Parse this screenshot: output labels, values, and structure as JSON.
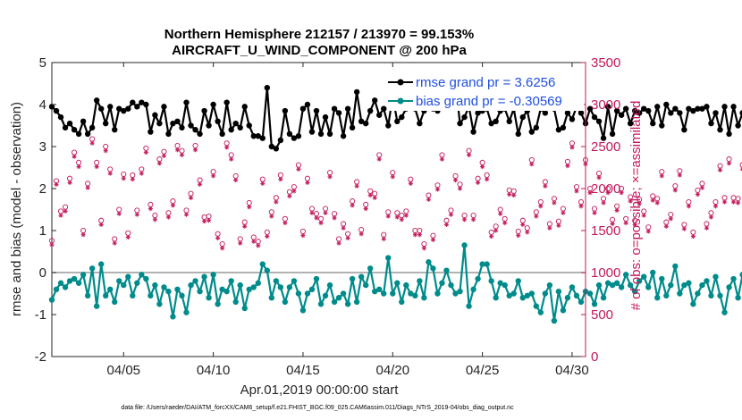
{
  "chart_data": {
    "type": "line",
    "title_line1": "Northern Hemisphere 212157 / 213970 = 99.153%",
    "title_line2": "AIRCRAFT_U_WIND_COMPONENT @ 200 hPa",
    "ylabel_left": "rmse and bias (model - observation)",
    "ylabel_right": "# of obs: o=possible; ×=assimilated",
    "xlabel": "Apr.01,2019 00:00:00 start",
    "footer": "data file: /Users/raeder/DAI/ATM_forcXX/CAM6_setup/f.e21.FHIST_BGC.f09_025.CAM6assim.011/Diags_NTrS_2019-04/obs_diag_output.nc",
    "xlim": [
      1.0,
      30.75
    ],
    "ylim_left": [
      -2,
      5
    ],
    "ylim_right": [
      0,
      3500
    ],
    "left_ticks": [
      "-2",
      "-1",
      "0",
      "1",
      "2",
      "3",
      "4",
      "5"
    ],
    "right_ticks": [
      "0",
      "500",
      "1000",
      "1500",
      "2000",
      "2500",
      "3000",
      "3500"
    ],
    "x_ticks": [
      {
        "label": "04/05",
        "day": 5
      },
      {
        "label": "04/10",
        "day": 10
      },
      {
        "label": "04/15",
        "day": 15
      },
      {
        "label": "04/20",
        "day": 20
      },
      {
        "label": "04/25",
        "day": 25
      },
      {
        "label": "04/30",
        "day": 30
      }
    ],
    "x_step_days": 0.25,
    "colors": {
      "rmse": "#000000",
      "bias": "#008b8b",
      "obs": "#c2185b",
      "legend_text": "#1f4fe0",
      "zero_line": "#999999"
    },
    "series": [
      {
        "name": "rmse grand pr = 3.6256",
        "axis": "left",
        "values": [
          3.95,
          3.85,
          3.7,
          3.45,
          3.55,
          3.4,
          3.3,
          3.6,
          3.3,
          3.45,
          4.1,
          3.9,
          3.55,
          3.95,
          3.4,
          3.9,
          3.85,
          3.9,
          4.05,
          3.95,
          4.05,
          4.0,
          3.35,
          3.75,
          3.55,
          3.95,
          3.3,
          3.55,
          3.6,
          3.45,
          4.05,
          3.5,
          3.4,
          3.3,
          3.85,
          3.5,
          4.0,
          3.6,
          3.3,
          4.05,
          3.4,
          3.55,
          3.45,
          3.95,
          3.5,
          3.25,
          3.25,
          3.2,
          4.4,
          3.0,
          2.95,
          3.15,
          3.85,
          3.3,
          3.2,
          3.25,
          3.9,
          4.0,
          3.35,
          3.85,
          3.3,
          3.7,
          3.3,
          3.9,
          3.8,
          3.25,
          3.9,
          3.45,
          4.3,
          3.6,
          3.55,
          3.85,
          4.1,
          3.75,
          3.9,
          3.5,
          4.2,
          3.6,
          3.7,
          3.9,
          3.95,
          3.9,
          3.55,
          3.85,
          4.15,
          3.9,
          3.85,
          4.05,
          4.1,
          4.2,
          4.55,
          3.55,
          3.7,
          3.95,
          3.35,
          3.8,
          3.85,
          3.9,
          3.55,
          3.6,
          3.85,
          3.9,
          3.6,
          3.9,
          3.3,
          3.7,
          3.85,
          3.35,
          3.45,
          3.9,
          3.8,
          4.05,
          3.9,
          3.4,
          3.45,
          3.8,
          3.65,
          3.95,
          3.8,
          3.55,
          3.9,
          3.7,
          3.6,
          3.2,
          3.95,
          3.3,
          3.85,
          3.75,
          3.9,
          3.55,
          3.85,
          3.8,
          3.9,
          3.85,
          3.55,
          3.95,
          3.5,
          4.0,
          3.8,
          3.9,
          3.8,
          3.4,
          3.9,
          3.85,
          3.9,
          3.9,
          3.95,
          3.55,
          3.8,
          3.4,
          3.95,
          3.3,
          3.95,
          3.5,
          3.8,
          3.75,
          3.55,
          3.95,
          3.55,
          3.9,
          3.75,
          3.55,
          3.5,
          3.9,
          3.3,
          3.8,
          3.7,
          3.3,
          3.6,
          3.5,
          3.3,
          3.2,
          3.35,
          3.0,
          3.25,
          3.65,
          3.15,
          3.4,
          3.9,
          3.2,
          3.6,
          3.8,
          3.25,
          3.1,
          3.05
        ]
      },
      {
        "name": "bias grand pr = -0.30569",
        "axis": "left",
        "values": [
          -0.65,
          -0.4,
          -0.25,
          -0.35,
          -0.2,
          -0.15,
          -0.25,
          -0.05,
          -0.55,
          0.1,
          -0.8,
          0.2,
          -0.55,
          -0.4,
          -0.7,
          -0.2,
          -0.3,
          -0.1,
          -0.55,
          -0.25,
          -0.05,
          -0.15,
          -0.55,
          -0.3,
          -0.75,
          -0.35,
          -0.45,
          -1.05,
          -0.4,
          -0.55,
          -0.95,
          -0.3,
          -0.2,
          -0.45,
          -0.1,
          -0.6,
          -0.05,
          -0.75,
          -0.4,
          -0.45,
          -0.2,
          -0.7,
          -0.3,
          -0.85,
          -0.4,
          -0.35,
          -0.25,
          0.2,
          0.05,
          -0.6,
          -0.2,
          -0.35,
          -0.7,
          -0.35,
          -0.2,
          -0.5,
          -0.9,
          -0.5,
          -0.4,
          -0.15,
          -0.75,
          -0.55,
          -0.3,
          -0.7,
          -0.6,
          -0.5,
          -0.75,
          -0.15,
          -0.7,
          -0.1,
          -0.3,
          0.1,
          -0.45,
          -0.4,
          -0.5,
          0.35,
          -0.5,
          -0.25,
          -0.7,
          -0.3,
          -0.5,
          -0.55,
          -0.2,
          -0.6,
          0.25,
          0.1,
          -0.5,
          -0.25,
          0.05,
          -0.3,
          -0.5,
          -0.45,
          0.65,
          -0.8,
          -0.4,
          -0.15,
          0.2,
          0.2,
          -0.2,
          -0.6,
          -0.25,
          -0.3,
          -0.55,
          -0.5,
          -0.2,
          -0.6,
          -0.55,
          -0.5,
          -0.8,
          -0.95,
          -0.5,
          -0.3,
          -1.15,
          -0.45,
          -0.9,
          -0.6,
          -0.35,
          -0.55,
          -0.7,
          -0.45,
          -0.5,
          -0.75,
          -0.3,
          -0.6,
          -0.25,
          -0.3,
          -0.25,
          -0.35,
          -0.05,
          -0.3,
          -0.45,
          -0.2,
          -0.1,
          -0.35,
          0.0,
          -0.6,
          -0.15,
          -0.55,
          -0.3,
          0.15,
          -0.5,
          -0.3,
          -0.25,
          -0.75,
          -0.5,
          -0.3,
          -0.2,
          -0.55,
          -0.1,
          -0.55,
          -0.95,
          -0.35,
          -0.15,
          -0.6,
          -0.05,
          -0.6,
          -0.75,
          -0.35,
          -0.15,
          -0.15,
          -0.45,
          -0.25,
          -0.15,
          -0.7,
          -0.6,
          -0.35,
          -0.25,
          -0.25,
          -0.7,
          -0.65,
          -0.25,
          -0.55,
          -0.45,
          -0.85,
          0.15,
          -0.55,
          -0.1,
          -0.3,
          -0.45,
          -0.3,
          -0.55,
          -0.6,
          -0.4,
          -0.2
        ]
      },
      {
        "name": "possible",
        "axis": "right",
        "marker": "o",
        "values": [
          1380,
          2090,
          1730,
          1780,
          2120,
          2430,
          2310,
          1500,
          2060,
          2590,
          2310,
          1620,
          2500,
          2230,
          1400,
          1750,
          2170,
          1470,
          2160,
          1740,
          2230,
          2480,
          1810,
          1680,
          2350,
          2440,
          1710,
          1850,
          2510,
          2450,
          1740,
          1940,
          2510,
          2100,
          1660,
          1670,
          2200,
          1460,
          1340,
          2540,
          2400,
          2150,
          1400,
          1600,
          1830,
          1420,
          1370,
          2110,
          1480,
          1720,
          1890,
          2160,
          1640,
          1960,
          2020,
          2280,
          1490,
          2120,
          1760,
          1700,
          1640,
          1760,
          2190,
          1700,
          1400,
          1580,
          1460,
          1850,
          2080,
          1510,
          1810,
          1970,
          1940,
          2400,
          1450,
          1720,
          2190,
          1710,
          1680,
          1730,
          2110,
          1500,
          1500,
          1340,
          1920,
          1440,
          2040,
          2400,
          1620,
          1740,
          2150,
          2050,
          1680,
          2450,
          1680,
          2120,
          2310,
          2160,
          1480,
          1550,
          1750,
          1640,
          1980,
          1970,
          1490,
          1620,
          1530,
          2340,
          1720,
          1840,
          2080,
          1580,
          1880,
          1610,
          1760,
          2320,
          2540,
          2020,
          1840,
          2340,
          2000,
          1760,
          2180,
          1880,
          2000,
          1630,
          1790,
          2000,
          1640,
          1900,
          1620,
          1870,
          1730,
          1540,
          1910,
          1880,
          2200,
          1600,
          1690,
          2030,
          2210,
          1570,
          1840,
          1480,
          1980,
          2060,
          1580,
          1710,
          1840,
          2270,
          1890,
          2350,
          1890,
          1880,
          2280,
          1820,
          1630,
          1480,
          1790,
          2310,
          2150,
          1770,
          1510,
          1690,
          1830,
          1910,
          1960,
          1750,
          1330,
          1920,
          2250,
          1390,
          1420,
          2000,
          1740,
          2160,
          1780,
          1950,
          2060,
          1870,
          1480,
          1570,
          1670
        ]
      },
      {
        "name": "assimilated",
        "axis": "right",
        "marker": "*",
        "values": [
          1330,
          2050,
          1680,
          1730,
          2070,
          2380,
          2260,
          1450,
          2010,
          2540,
          2260,
          1570,
          2450,
          2180,
          1350,
          1700,
          2120,
          1420,
          2110,
          1690,
          2180,
          2430,
          1760,
          1630,
          2300,
          2390,
          1660,
          1800,
          2460,
          2400,
          1690,
          1890,
          2460,
          2050,
          1610,
          1620,
          2150,
          1410,
          1290,
          2490,
          2350,
          2100,
          1350,
          1550,
          1780,
          1370,
          1320,
          2060,
          1430,
          1670,
          1840,
          2110,
          1590,
          1910,
          1970,
          2230,
          1440,
          2070,
          1710,
          1650,
          1590,
          1710,
          2140,
          1650,
          1350,
          1530,
          1410,
          1800,
          2030,
          1460,
          1760,
          1920,
          1890,
          2350,
          1400,
          1670,
          2140,
          1660,
          1630,
          1680,
          2060,
          1450,
          1450,
          1290,
          1870,
          1390,
          1990,
          2350,
          1570,
          1690,
          2100,
          2000,
          1630,
          2400,
          1630,
          2070,
          2260,
          2110,
          1430,
          1500,
          1700,
          1590,
          1930,
          1920,
          1440,
          1570,
          1480,
          2290,
          1670,
          1790,
          2030,
          1530,
          1830,
          1560,
          1710,
          2270,
          2490,
          1970,
          1790,
          2290,
          1950,
          1710,
          2130,
          1830,
          1950,
          1580,
          1740,
          1950,
          1590,
          1850,
          1570,
          1820,
          1680,
          1490,
          1860,
          1830,
          2150,
          1550,
          1640,
          1980,
          2160,
          1520,
          1790,
          1430,
          1930,
          2010,
          1530,
          1660,
          1790,
          2220,
          1840,
          2300,
          1840,
          1830,
          2230,
          1770,
          1580,
          1430,
          1740,
          2260,
          2100,
          1720,
          1460,
          1640,
          1780,
          1860,
          1910,
          1700,
          1280,
          1870,
          2200,
          1340,
          1370,
          1950,
          1690,
          2110,
          1730,
          1900,
          2010,
          1820,
          1430,
          1520,
          1620
        ]
      }
    ]
  }
}
